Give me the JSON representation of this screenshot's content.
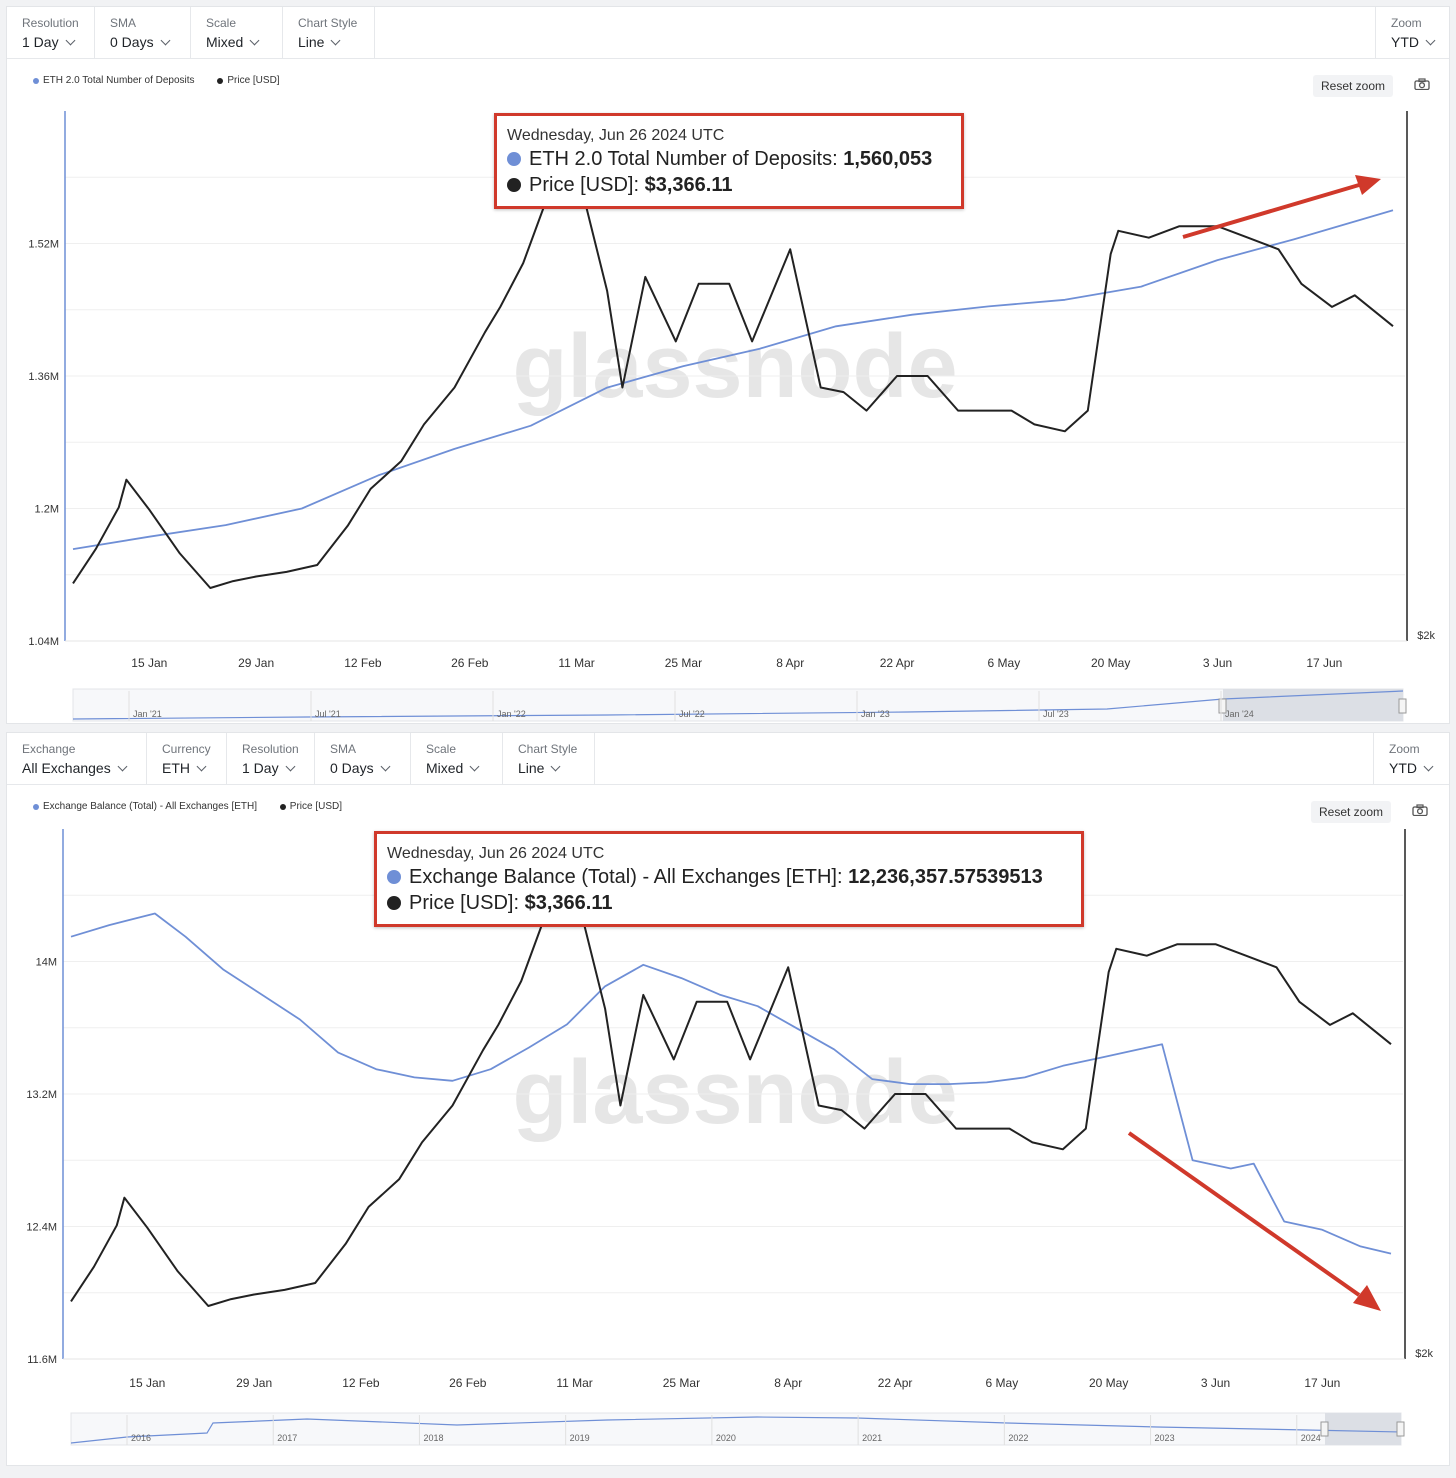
{
  "colors": {
    "series_blue": "#6f8fd6",
    "price_black": "#222222",
    "annotation_red": "#d0392b",
    "watermark": "#e7e7e7"
  },
  "chart1": {
    "controls": [
      {
        "label": "Resolution",
        "value": "1 Day"
      },
      {
        "label": "SMA",
        "value": "0 Days"
      },
      {
        "label": "Scale",
        "value": "Mixed"
      },
      {
        "label": "Chart Style",
        "value": "Line"
      }
    ],
    "zoom": {
      "label": "Zoom",
      "value": "YTD"
    },
    "legend": [
      "ETH 2.0 Total Number of Deposits",
      "Price [USD]"
    ],
    "reset_zoom": "Reset zoom",
    "watermark": "glassnode",
    "tooltip": {
      "date": "Wednesday, Jun 26 2024 UTC",
      "series_label": "ETH 2.0 Total Number of Deposits: ",
      "series_value": "1,560,053",
      "price_label": "Price [USD]: ",
      "price_value": "$3,366.11"
    },
    "navigator_labels": [
      "Jan '21",
      "Jul '21",
      "Jan '22",
      "Jul '22",
      "Jan '23",
      "Jul '23",
      "Jan '24"
    ]
  },
  "chart2": {
    "controls": [
      {
        "label": "Exchange",
        "value": "All Exchanges"
      },
      {
        "label": "Currency",
        "value": "ETH"
      },
      {
        "label": "Resolution",
        "value": "1 Day"
      },
      {
        "label": "SMA",
        "value": "0 Days"
      },
      {
        "label": "Scale",
        "value": "Mixed"
      },
      {
        "label": "Chart Style",
        "value": "Line"
      }
    ],
    "zoom": {
      "label": "Zoom",
      "value": "YTD"
    },
    "legend": [
      "Exchange Balance (Total) - All Exchanges [ETH]",
      "Price [USD]"
    ],
    "reset_zoom": "Reset zoom",
    "watermark": "glassnode",
    "tooltip": {
      "date": "Wednesday, Jun 26 2024 UTC",
      "series_label": "Exchange Balance (Total) - All Exchanges [ETH]: ",
      "series_value": "12,236,357.57539513",
      "price_label": "Price [USD]: ",
      "price_value": "$3,366.11"
    },
    "navigator_labels": [
      "2016",
      "2017",
      "2018",
      "2019",
      "2020",
      "2021",
      "2022",
      "2023",
      "2024"
    ]
  },
  "chart_data": [
    {
      "type": "line",
      "x_tick_labels": [
        "15 Jan",
        "29 Jan",
        "12 Feb",
        "26 Feb",
        "11 Mar",
        "25 Mar",
        "8 Apr",
        "22 Apr",
        "6 May",
        "20 May",
        "3 Jun",
        "17 Jun"
      ],
      "left_axis_ticks": [
        "1.04M",
        "1.2M",
        "1.36M",
        "1.52M"
      ],
      "left_axis_range": [
        1040000,
        1680000
      ],
      "right_axis_ticks": [
        "$2k"
      ],
      "grid": true,
      "legend_position": "top-left",
      "series": [
        {
          "name": "ETH 2.0 Total Number of Deposits",
          "axis": "left",
          "x": [
            "2024-01-05",
            "2024-01-15",
            "2024-01-25",
            "2024-02-04",
            "2024-02-14",
            "2024-02-24",
            "2024-03-05",
            "2024-03-15",
            "2024-03-25",
            "2024-04-04",
            "2024-04-14",
            "2024-04-24",
            "2024-05-04",
            "2024-05-14",
            "2024-05-24",
            "2024-06-03",
            "2024-06-13",
            "2024-06-26"
          ],
          "values": [
            1151000,
            1166000,
            1180000,
            1200000,
            1240000,
            1272000,
            1300000,
            1346000,
            1372000,
            1393000,
            1420000,
            1434000,
            1444000,
            1452000,
            1468000,
            1500000,
            1525000,
            1560053
          ]
        },
        {
          "name": "Price [USD]",
          "axis": "right",
          "x": [
            "2024-01-05",
            "2024-01-08",
            "2024-01-11",
            "2024-01-12",
            "2024-01-15",
            "2024-01-19",
            "2024-01-23",
            "2024-01-26",
            "2024-01-29",
            "2024-02-02",
            "2024-02-06",
            "2024-02-10",
            "2024-02-13",
            "2024-02-17",
            "2024-02-20",
            "2024-02-24",
            "2024-02-28",
            "2024-03-01",
            "2024-03-04",
            "2024-03-08",
            "2024-03-12",
            "2024-03-15",
            "2024-03-17",
            "2024-03-20",
            "2024-03-24",
            "2024-03-27",
            "2024-03-31",
            "2024-04-03",
            "2024-04-08",
            "2024-04-12",
            "2024-04-15",
            "2024-04-18",
            "2024-04-22",
            "2024-04-26",
            "2024-04-30",
            "2024-05-03",
            "2024-05-07",
            "2024-05-10",
            "2024-05-14",
            "2024-05-17",
            "2024-05-20",
            "2024-05-21",
            "2024-05-25",
            "2024-05-29",
            "2024-06-03",
            "2024-06-07",
            "2024-06-11",
            "2024-06-14",
            "2024-06-18",
            "2024-06-21",
            "2024-06-24",
            "2024-06-26"
          ],
          "values": [
            2250,
            2400,
            2580,
            2700,
            2570,
            2380,
            2230,
            2260,
            2280,
            2300,
            2330,
            2500,
            2660,
            2780,
            2940,
            3100,
            3340,
            3450,
            3640,
            4000,
            3920,
            3520,
            3100,
            3580,
            3300,
            3550,
            3550,
            3300,
            3700,
            3100,
            3080,
            3000,
            3150,
            3150,
            3000,
            3000,
            3000,
            2940,
            2910,
            3000,
            3680,
            3780,
            3750,
            3800,
            3800,
            3750,
            3700,
            3550,
            3450,
            3500,
            3420,
            3366.11
          ]
        }
      ]
    },
    {
      "type": "line",
      "x_tick_labels": [
        "15 Jan",
        "29 Jan",
        "12 Feb",
        "26 Feb",
        "11 Mar",
        "25 Mar",
        "8 Apr",
        "22 Apr",
        "6 May",
        "20 May",
        "3 Jun",
        "17 Jun"
      ],
      "left_axis_ticks": [
        "11.6M",
        "12.4M",
        "13.2M",
        "14M"
      ],
      "left_axis_range": [
        11600000,
        14800000
      ],
      "right_axis_ticks": [
        "$2k"
      ],
      "grid": true,
      "legend_position": "top-left",
      "series": [
        {
          "name": "Exchange Balance (Total) - All Exchanges [ETH]",
          "axis": "left",
          "x": [
            "2024-01-05",
            "2024-01-10",
            "2024-01-16",
            "2024-01-20",
            "2024-01-25",
            "2024-01-30",
            "2024-02-04",
            "2024-02-09",
            "2024-02-14",
            "2024-02-19",
            "2024-02-24",
            "2024-02-29",
            "2024-03-05",
            "2024-03-10",
            "2024-03-15",
            "2024-03-20",
            "2024-03-25",
            "2024-03-30",
            "2024-04-04",
            "2024-04-09",
            "2024-04-14",
            "2024-04-19",
            "2024-04-24",
            "2024-04-29",
            "2024-05-04",
            "2024-05-09",
            "2024-05-14",
            "2024-05-19",
            "2024-05-24",
            "2024-05-27",
            "2024-05-31",
            "2024-06-05",
            "2024-06-08",
            "2024-06-12",
            "2024-06-17",
            "2024-06-22",
            "2024-06-26"
          ],
          "values": [
            14150000,
            14220000,
            14290000,
            14150000,
            13950000,
            13800000,
            13650000,
            13450000,
            13350000,
            13300000,
            13280000,
            13350000,
            13480000,
            13620000,
            13850000,
            13980000,
            13900000,
            13800000,
            13730000,
            13600000,
            13470000,
            13290000,
            13260000,
            13260000,
            13270000,
            13300000,
            13370000,
            13420000,
            13470000,
            13500000,
            12800000,
            12750000,
            12780000,
            12430000,
            12380000,
            12280000,
            12236357.58
          ]
        },
        {
          "name": "Price [USD]",
          "axis": "right",
          "x": [
            "2024-01-05",
            "2024-01-08",
            "2024-01-11",
            "2024-01-12",
            "2024-01-15",
            "2024-01-19",
            "2024-01-23",
            "2024-01-26",
            "2024-01-29",
            "2024-02-02",
            "2024-02-06",
            "2024-02-10",
            "2024-02-13",
            "2024-02-17",
            "2024-02-20",
            "2024-02-24",
            "2024-02-28",
            "2024-03-01",
            "2024-03-04",
            "2024-03-08",
            "2024-03-12",
            "2024-03-15",
            "2024-03-17",
            "2024-03-20",
            "2024-03-24",
            "2024-03-27",
            "2024-03-31",
            "2024-04-03",
            "2024-04-08",
            "2024-04-12",
            "2024-04-15",
            "2024-04-18",
            "2024-04-22",
            "2024-04-26",
            "2024-04-30",
            "2024-05-03",
            "2024-05-07",
            "2024-05-10",
            "2024-05-14",
            "2024-05-17",
            "2024-05-20",
            "2024-05-21",
            "2024-05-25",
            "2024-05-29",
            "2024-06-03",
            "2024-06-07",
            "2024-06-11",
            "2024-06-14",
            "2024-06-18",
            "2024-06-21",
            "2024-06-24",
            "2024-06-26"
          ],
          "values": [
            2250,
            2400,
            2580,
            2700,
            2570,
            2380,
            2230,
            2260,
            2280,
            2300,
            2330,
            2500,
            2660,
            2780,
            2940,
            3100,
            3340,
            3450,
            3640,
            4000,
            3920,
            3520,
            3100,
            3580,
            3300,
            3550,
            3550,
            3300,
            3700,
            3100,
            3080,
            3000,
            3150,
            3150,
            3000,
            3000,
            3000,
            2940,
            2910,
            3000,
            3680,
            3780,
            3750,
            3800,
            3800,
            3750,
            3700,
            3550,
            3450,
            3500,
            3420,
            3366.11
          ]
        }
      ]
    }
  ]
}
